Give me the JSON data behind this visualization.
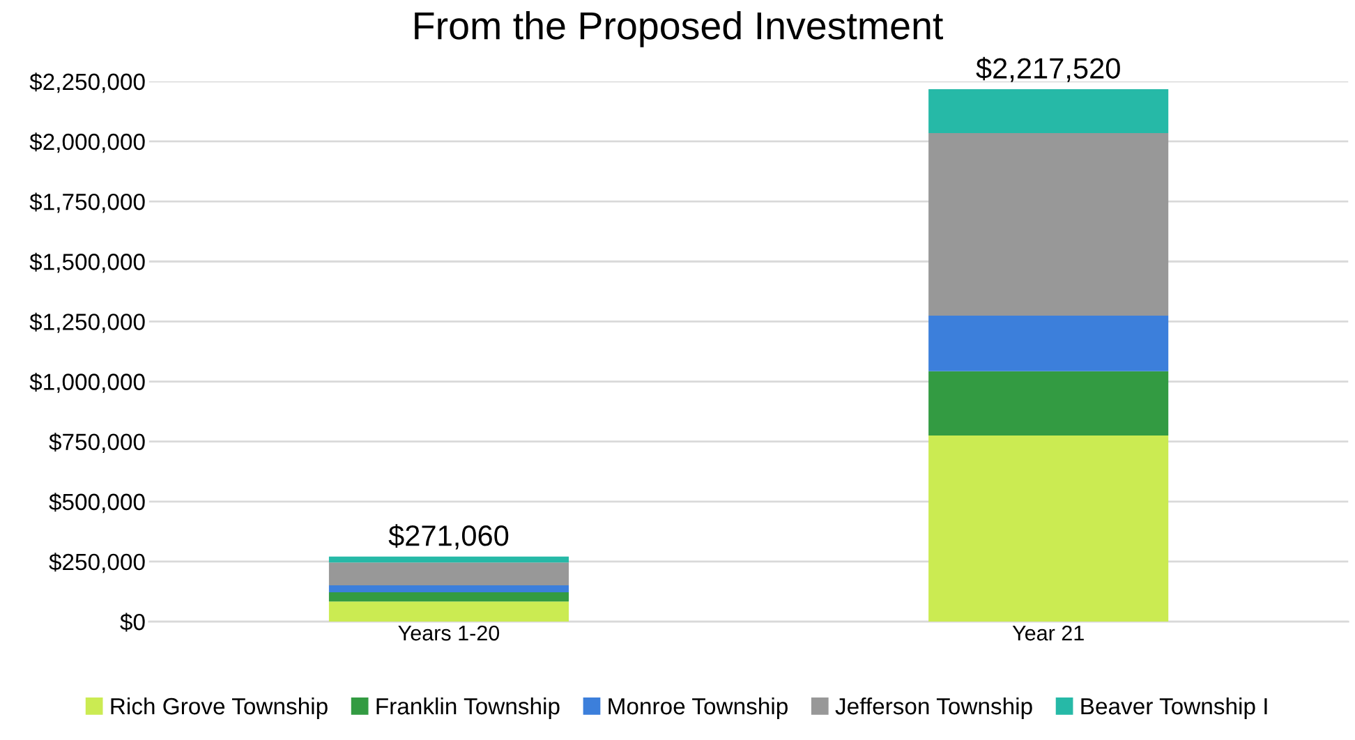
{
  "chart_data": {
    "type": "bar",
    "title": "From the Proposed Investment",
    "categories": [
      "Years 1-20",
      "Year 21"
    ],
    "stacked": true,
    "series": [
      {
        "name": "Rich Grove Township",
        "color": "#cbeb52",
        "values": [
          84000,
          775000
        ]
      },
      {
        "name": "Franklin Township",
        "color": "#339b42",
        "values": [
          38000,
          268000
        ]
      },
      {
        "name": "Monroe Township",
        "color": "#3c7fdb",
        "values": [
          29000,
          231000
        ]
      },
      {
        "name": "Jefferson Township",
        "color": "#989898",
        "values": [
          95000,
          761000
        ]
      },
      {
        "name": "Beaver Township I",
        "color": "#26b9a7",
        "values": [
          25060,
          182520
        ]
      }
    ],
    "totals": [
      "$271,060",
      "$2,217,520"
    ],
    "ylim": [
      0,
      2250000
    ],
    "yticks": [
      {
        "value": 0,
        "label": "$0"
      },
      {
        "value": 250000,
        "label": "$250,000"
      },
      {
        "value": 500000,
        "label": "$500,000"
      },
      {
        "value": 750000,
        "label": "$750,000"
      },
      {
        "value": 1000000,
        "label": "$1,000,000"
      },
      {
        "value": 1250000,
        "label": "$1,250,000"
      },
      {
        "value": 1500000,
        "label": "$1,500,000"
      },
      {
        "value": 1750000,
        "label": "$1,750,000"
      },
      {
        "value": 2000000,
        "label": "$2,000,000"
      },
      {
        "value": 2250000,
        "label": "$2,250,000"
      }
    ],
    "grid": "y",
    "legend": "bottom"
  }
}
